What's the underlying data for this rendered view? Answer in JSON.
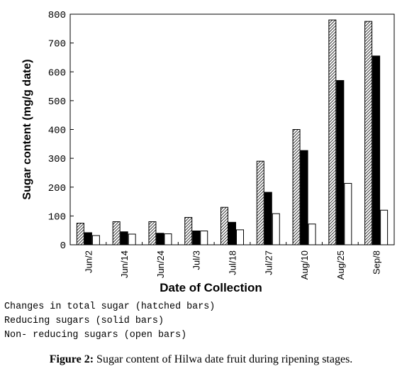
{
  "chart_data": {
    "type": "bar",
    "title": "",
    "xlabel": "Date of Collection",
    "ylabel": "Sugar content (mg/g date)",
    "ylim": [
      0,
      800
    ],
    "yticks": [
      "0",
      "100",
      "200",
      "300",
      "400",
      "500",
      "600",
      "700",
      "800"
    ],
    "categories": [
      "Jun/2",
      "Jun/14",
      "Jun/24",
      "Jul/3",
      "Jul/18",
      "Jul/27",
      "Aug/10",
      "Aug/25",
      "Sep/8"
    ],
    "series": [
      {
        "style": "hatched",
        "values": [
          75,
          80,
          80,
          95,
          130,
          290,
          400,
          780,
          775
        ]
      },
      {
        "style": "solid",
        "values": [
          42,
          45,
          40,
          48,
          78,
          182,
          327,
          570,
          655
        ]
      },
      {
        "style": "open",
        "values": [
          32,
          37,
          38,
          48,
          52,
          108,
          72,
          213,
          120
        ]
      }
    ],
    "grid": false,
    "colors": {
      "axis": "#000000",
      "hatch": "#000000",
      "solid": "#000000",
      "open": "#ffffff"
    }
  },
  "notes": [
    "Changes in total sugar (hatched bars)",
    "Reducing sugars (solid bars)",
    "Non- reducing sugars (open bars)"
  ],
  "caption": {
    "label": "Figure 2:",
    "text": " Sugar content of Hilwa date fruit during ripening stages."
  }
}
